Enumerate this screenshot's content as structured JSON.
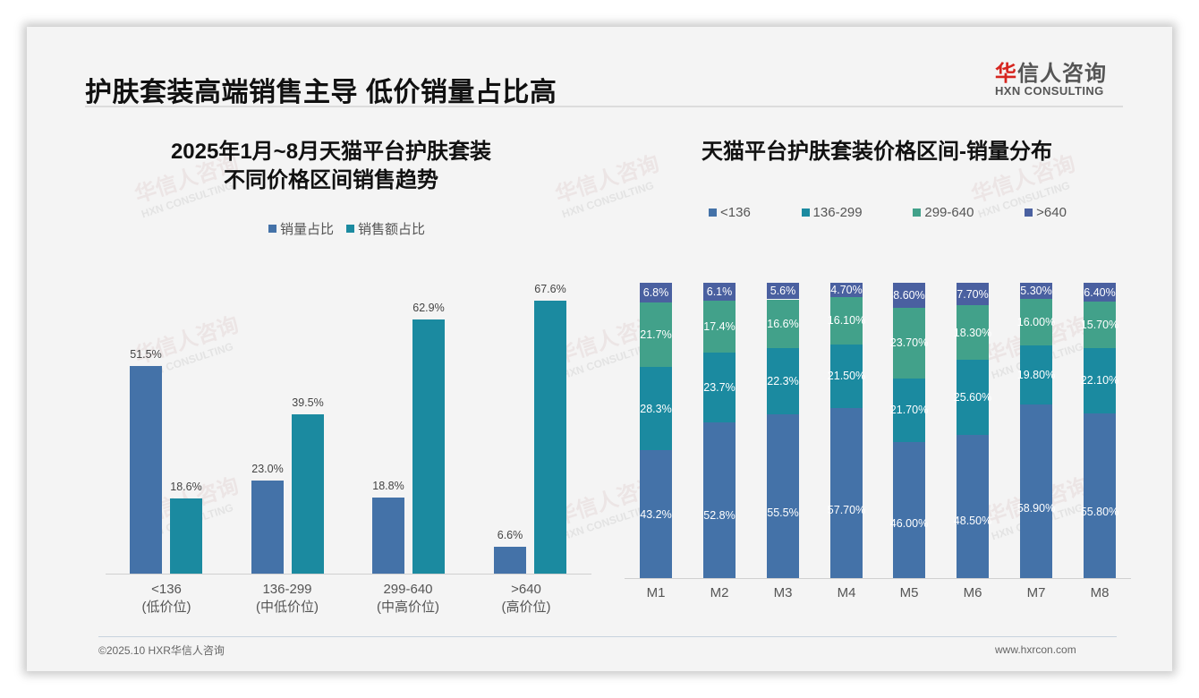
{
  "header": {
    "title": "护肤套装高端销售主导 低价销量占比高",
    "logo_cn_highlight": "华",
    "logo_cn_rest": "信人咨询",
    "logo_en": "HXN CONSULTING"
  },
  "left_chart": {
    "title_line1": "2025年1月~8月天猫平台护肤套装",
    "title_line2": "不同价格区间销售趋势",
    "legend": [
      {
        "label": "销量占比",
        "color": "#4472a8"
      },
      {
        "label": "销售额占比",
        "color": "#1b8aa0"
      }
    ],
    "categories": [
      {
        "line1": "<136",
        "line2": "(低价位)"
      },
      {
        "line1": "136-299",
        "line2": "(中低价位)"
      },
      {
        "line1": "299-640",
        "line2": "(中高价位)"
      },
      {
        "line1": ">640",
        "line2": "(高价位)"
      }
    ],
    "labels": {
      "volume": [
        "51.5%",
        "23.0%",
        "18.8%",
        "6.6%"
      ],
      "sales": [
        "18.6%",
        "39.5%",
        "62.9%",
        "67.6%"
      ]
    }
  },
  "right_chart": {
    "title": "天猫平台护肤套装价格区间-销量分布",
    "legend": [
      {
        "label": "<136",
        "color": "#4472a8"
      },
      {
        "label": "136-299",
        "color": "#1b8aa0"
      },
      {
        "label": "299-640",
        "color": "#42a18a"
      },
      {
        "label": ">640",
        "color": "#4a60a0"
      }
    ],
    "months": [
      "M1",
      "M2",
      "M3",
      "M4",
      "M5",
      "M6",
      "M7",
      "M8"
    ],
    "labels": {
      "lt136": [
        "43.2%",
        "52.8%",
        "55.5%",
        "57.70%",
        "46.00%",
        "48.50%",
        "58.90%",
        "55.80%"
      ],
      "r136_299": [
        "28.3%",
        "23.7%",
        "22.3%",
        "21.50%",
        "21.70%",
        "25.60%",
        "19.80%",
        "22.10%"
      ],
      "r299_640": [
        "21.7%",
        "17.4%",
        "16.6%",
        "16.10%",
        "23.70%",
        "18.30%",
        "16.00%",
        "15.70%"
      ],
      "gt640": [
        "6.8%",
        "6.1%",
        "5.6%",
        "4.70%",
        "8.60%",
        "7.70%",
        "5.30%",
        "6.40%"
      ]
    }
  },
  "footer": {
    "copyright": "©2025.10 HXR华信人咨询",
    "website": "www.hxrcon.com"
  },
  "chart_data": [
    {
      "type": "bar",
      "title": "2025年1月~8月天猫平台护肤套装不同价格区间销售趋势",
      "categories": [
        "<136 (低价位)",
        "136-299 (中低价位)",
        "299-640 (中高价位)",
        ">640 (高价位)"
      ],
      "series": [
        {
          "name": "销量占比",
          "values": [
            51.5,
            23.0,
            18.8,
            6.6
          ],
          "color": "#4472a8"
        },
        {
          "name": "销售额占比",
          "values": [
            18.6,
            39.5,
            62.9,
            67.6
          ],
          "color": "#1b8aa0"
        }
      ],
      "xlabel": "",
      "ylabel": "",
      "unit": "%",
      "legend_position": "top",
      "grid": false,
      "ylim": [
        0,
        70
      ]
    },
    {
      "type": "bar",
      "stacked": true,
      "percent_stacked": true,
      "title": "天猫平台护肤套装价格区间-销量分布",
      "categories": [
        "M1",
        "M2",
        "M3",
        "M4",
        "M5",
        "M6",
        "M7",
        "M8"
      ],
      "series": [
        {
          "name": "<136",
          "values": [
            43.2,
            52.8,
            55.5,
            57.7,
            46.0,
            48.5,
            58.9,
            55.8
          ],
          "color": "#4472a8"
        },
        {
          "name": "136-299",
          "values": [
            28.3,
            23.7,
            22.3,
            21.5,
            21.7,
            25.6,
            19.8,
            22.1
          ],
          "color": "#1b8aa0"
        },
        {
          "name": "299-640",
          "values": [
            21.7,
            17.4,
            16.6,
            16.1,
            23.7,
            18.3,
            16.0,
            15.7
          ],
          "color": "#42a18a"
        },
        {
          "name": ">640",
          "values": [
            6.8,
            6.1,
            5.6,
            4.7,
            8.6,
            7.7,
            5.3,
            6.4
          ],
          "color": "#4a60a0"
        }
      ],
      "xlabel": "",
      "ylabel": "",
      "unit": "%",
      "legend_position": "top",
      "grid": false,
      "ylim": [
        0,
        100
      ]
    }
  ]
}
